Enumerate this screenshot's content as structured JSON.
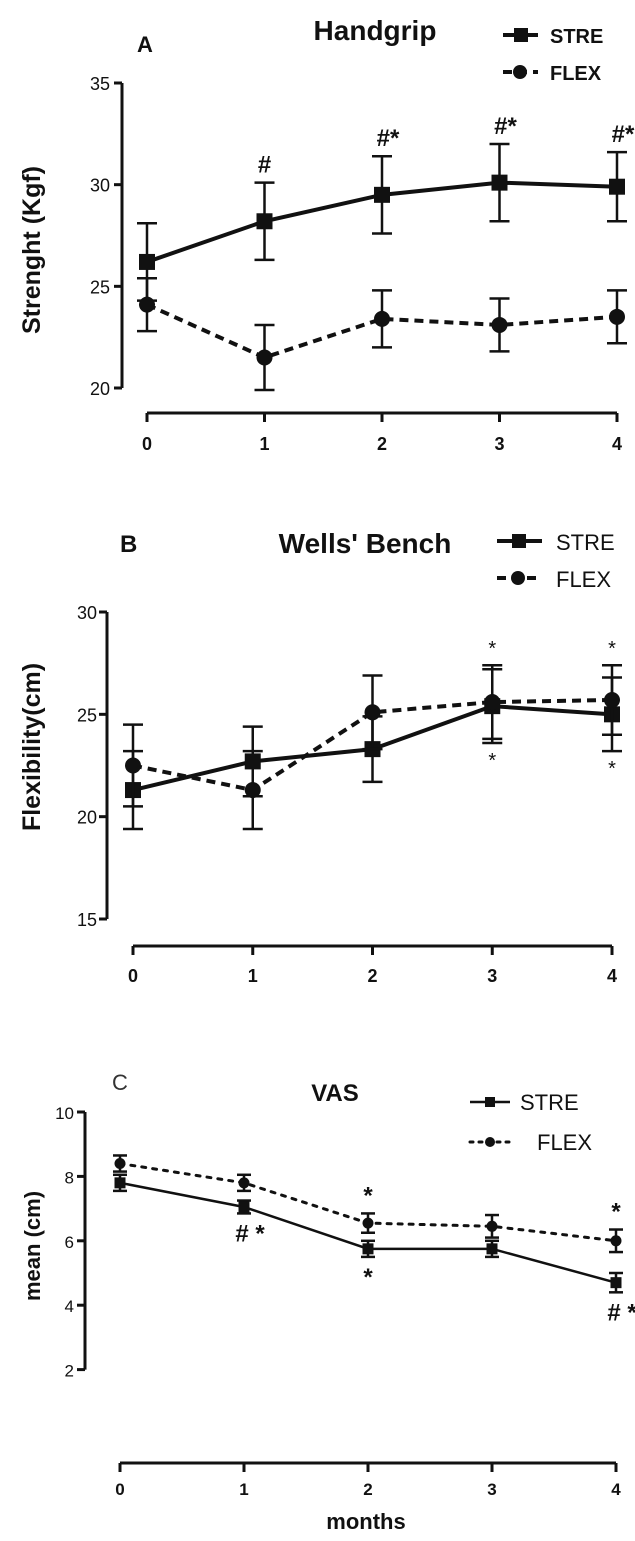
{
  "chart_data": [
    {
      "type": "line",
      "panel_label": "A",
      "title": "Handgrip",
      "ylabel": "Strenght (Kgf)",
      "xlabel": "",
      "x": [
        0,
        1,
        2,
        3,
        4
      ],
      "ylim": [
        20,
        35
      ],
      "yticks": [
        20,
        25,
        30,
        35
      ],
      "grid": false,
      "legend": "top-right",
      "series": [
        {
          "name": "STRE",
          "style": "solid",
          "marker": "square",
          "values": [
            26.2,
            28.2,
            29.5,
            30.1,
            29.9
          ],
          "errors": [
            1.9,
            1.9,
            1.9,
            1.9,
            1.7
          ]
        },
        {
          "name": "FLEX",
          "style": "dashed",
          "marker": "circle",
          "values": [
            24.1,
            21.5,
            23.4,
            23.1,
            23.5
          ],
          "errors": [
            1.3,
            1.6,
            1.4,
            1.3,
            1.3
          ]
        }
      ],
      "annotations": [
        {
          "x": 1,
          "series": 0,
          "pos": "above",
          "text": "#"
        },
        {
          "x": 2,
          "series": 0,
          "pos": "above",
          "text": "#*"
        },
        {
          "x": 3,
          "series": 0,
          "pos": "above",
          "text": "#*"
        },
        {
          "x": 4,
          "series": 0,
          "pos": "above",
          "text": "#*"
        }
      ]
    },
    {
      "type": "line",
      "panel_label": "B",
      "title": "Wells' Bench",
      "ylabel": "Flexibility(cm)",
      "xlabel": "",
      "x": [
        0,
        1,
        2,
        3,
        4
      ],
      "ylim": [
        15,
        30
      ],
      "yticks": [
        15,
        20,
        25,
        30
      ],
      "grid": false,
      "legend": "top-right",
      "series": [
        {
          "name": "STRE",
          "style": "solid",
          "marker": "square",
          "values": [
            21.3,
            22.7,
            23.3,
            25.4,
            25.0
          ],
          "errors": [
            1.9,
            1.7,
            1.6,
            1.8,
            1.8
          ]
        },
        {
          "name": "FLEX",
          "style": "dashed",
          "marker": "circle",
          "values": [
            22.5,
            21.3,
            25.1,
            25.6,
            25.7
          ],
          "errors": [
            2.0,
            1.9,
            1.8,
            1.8,
            1.7
          ]
        }
      ],
      "annotations": [
        {
          "x": 3,
          "series": 1,
          "pos": "above",
          "text": "*"
        },
        {
          "x": 3,
          "series": 0,
          "pos": "below",
          "text": "*"
        },
        {
          "x": 4,
          "series": 1,
          "pos": "above",
          "text": "*"
        },
        {
          "x": 4,
          "series": 0,
          "pos": "below",
          "text": "*"
        }
      ]
    },
    {
      "type": "line",
      "panel_label": "C",
      "title": "VAS",
      "ylabel": "mean (cm)",
      "xlabel": "months",
      "x": [
        0,
        1,
        2,
        3,
        4
      ],
      "ylim": [
        0,
        10
      ],
      "yticks": [
        2,
        4,
        6,
        8,
        10
      ],
      "grid": false,
      "legend": "top-right",
      "series": [
        {
          "name": "STRE",
          "style": "solid",
          "marker": "square",
          "values": [
            7.8,
            7.05,
            5.75,
            5.75,
            4.7
          ],
          "errors": [
            0.25,
            0.2,
            0.25,
            0.25,
            0.3
          ]
        },
        {
          "name": "FLEX",
          "style": "dotted",
          "marker": "circle",
          "values": [
            8.4,
            7.8,
            6.55,
            6.45,
            6.0
          ],
          "errors": [
            0.25,
            0.25,
            0.3,
            0.35,
            0.35
          ]
        }
      ],
      "annotations": [
        {
          "x": 1,
          "series": 0,
          "pos": "below",
          "text": "# *"
        },
        {
          "x": 2,
          "series": 1,
          "pos": "above",
          "text": "*"
        },
        {
          "x": 2,
          "series": 0,
          "pos": "below",
          "text": "*"
        },
        {
          "x": 4,
          "series": 1,
          "pos": "above",
          "text": "*"
        },
        {
          "x": 4,
          "series": 0,
          "pos": "below",
          "text": "# *"
        }
      ]
    }
  ]
}
